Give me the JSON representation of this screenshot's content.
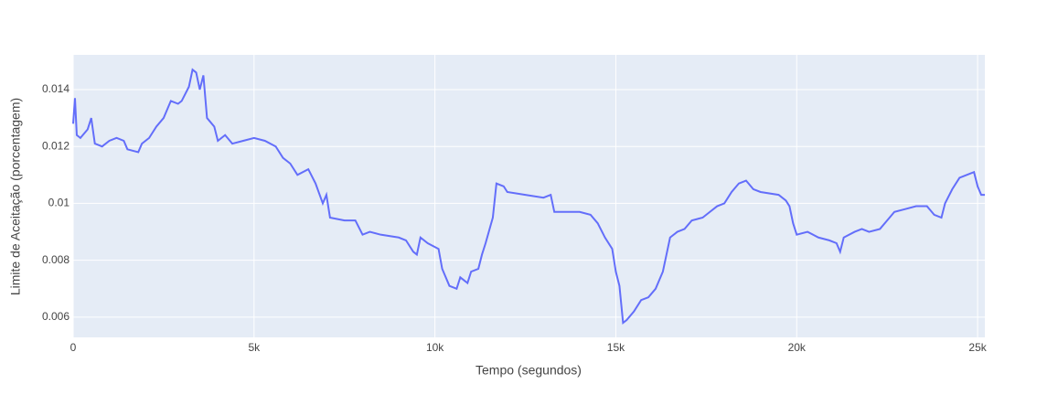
{
  "chart_data": {
    "type": "line",
    "x_label": "Tempo (segundos)",
    "y_label": "Limite de Aceitação (porcentagem)",
    "x": [
      0,
      50,
      100,
      200,
      400,
      500,
      600,
      800,
      1000,
      1200,
      1400,
      1500,
      1800,
      1900,
      2100,
      2300,
      2500,
      2600,
      2700,
      2900,
      3000,
      3200,
      3300,
      3400,
      3500,
      3600,
      3700,
      3900,
      4000,
      4200,
      4400,
      4700,
      5000,
      5300,
      5600,
      5800,
      6000,
      6200,
      6500,
      6700,
      6900,
      7000,
      7100,
      7500,
      7800,
      8000,
      8200,
      8500,
      9000,
      9200,
      9400,
      9500,
      9600,
      9800,
      10100,
      10200,
      10400,
      10600,
      10700,
      10900,
      11000,
      11200,
      11300,
      11400,
      11600,
      11700,
      11900,
      12000,
      12500,
      13000,
      13200,
      13300,
      14000,
      14300,
      14500,
      14700,
      14900,
      15000,
      15100,
      15200,
      15300,
      15500,
      15700,
      15900,
      16100,
      16300,
      16400,
      16500,
      16700,
      16900,
      17100,
      17400,
      17600,
      17800,
      18000,
      18200,
      18400,
      18600,
      18800,
      19000,
      19500,
      19700,
      19800,
      19900,
      20000,
      20300,
      20600,
      20900,
      21100,
      21200,
      21300,
      21600,
      21800,
      22000,
      22300,
      22500,
      22700,
      23000,
      23300,
      23600,
      23800,
      24000,
      24100,
      24300,
      24500,
      24700,
      24900,
      25000,
      25100,
      25200
    ],
    "series": [
      {
        "name": "Limite",
        "color": "#636efa",
        "values": [
          0.0128,
          0.0137,
          0.0124,
          0.0123,
          0.0126,
          0.013,
          0.0121,
          0.012,
          0.0122,
          0.0123,
          0.0122,
          0.0119,
          0.0118,
          0.0121,
          0.0123,
          0.0127,
          0.013,
          0.0133,
          0.0136,
          0.0135,
          0.0136,
          0.0141,
          0.0147,
          0.0146,
          0.014,
          0.0145,
          0.013,
          0.0127,
          0.0122,
          0.0124,
          0.0121,
          0.0122,
          0.0123,
          0.0122,
          0.012,
          0.0116,
          0.0114,
          0.011,
          0.0112,
          0.0107,
          0.01,
          0.0103,
          0.0095,
          0.0094,
          0.0094,
          0.0089,
          0.009,
          0.0089,
          0.0088,
          0.0087,
          0.0083,
          0.0082,
          0.0088,
          0.0086,
          0.0084,
          0.0077,
          0.0071,
          0.007,
          0.0074,
          0.0072,
          0.0076,
          0.0077,
          0.0082,
          0.0086,
          0.0095,
          0.0107,
          0.0106,
          0.0104,
          0.0103,
          0.0102,
          0.0103,
          0.0097,
          0.0097,
          0.0096,
          0.0093,
          0.0088,
          0.0084,
          0.0076,
          0.0071,
          0.0058,
          0.0059,
          0.0062,
          0.0066,
          0.0067,
          0.007,
          0.0076,
          0.0082,
          0.0088,
          0.009,
          0.0091,
          0.0094,
          0.0095,
          0.0097,
          0.0099,
          0.01,
          0.0104,
          0.0107,
          0.0108,
          0.0105,
          0.0104,
          0.0103,
          0.0101,
          0.0099,
          0.0093,
          0.0089,
          0.009,
          0.0088,
          0.0087,
          0.0086,
          0.0083,
          0.0088,
          0.009,
          0.0091,
          0.009,
          0.0091,
          0.0094,
          0.0097,
          0.0098,
          0.0099,
          0.0099,
          0.0096,
          0.0095,
          0.01,
          0.0105,
          0.0109,
          0.011,
          0.0111,
          0.0106,
          0.0103,
          0.0103
        ]
      }
    ],
    "xlim": [
      0,
      25200
    ],
    "xticks": [
      0,
      {
        "value": 5000,
        "label": "5k"
      },
      {
        "value": 10000,
        "label": "10k"
      },
      {
        "value": 15000,
        "label": "15k"
      },
      {
        "value": 20000,
        "label": "20k"
      },
      {
        "value": 25000,
        "label": "25k"
      }
    ],
    "ylim": [
      0.00529,
      0.01522
    ],
    "yticks": [
      0.006,
      0.008,
      0.01,
      0.012,
      0.014
    ],
    "grid": true
  }
}
